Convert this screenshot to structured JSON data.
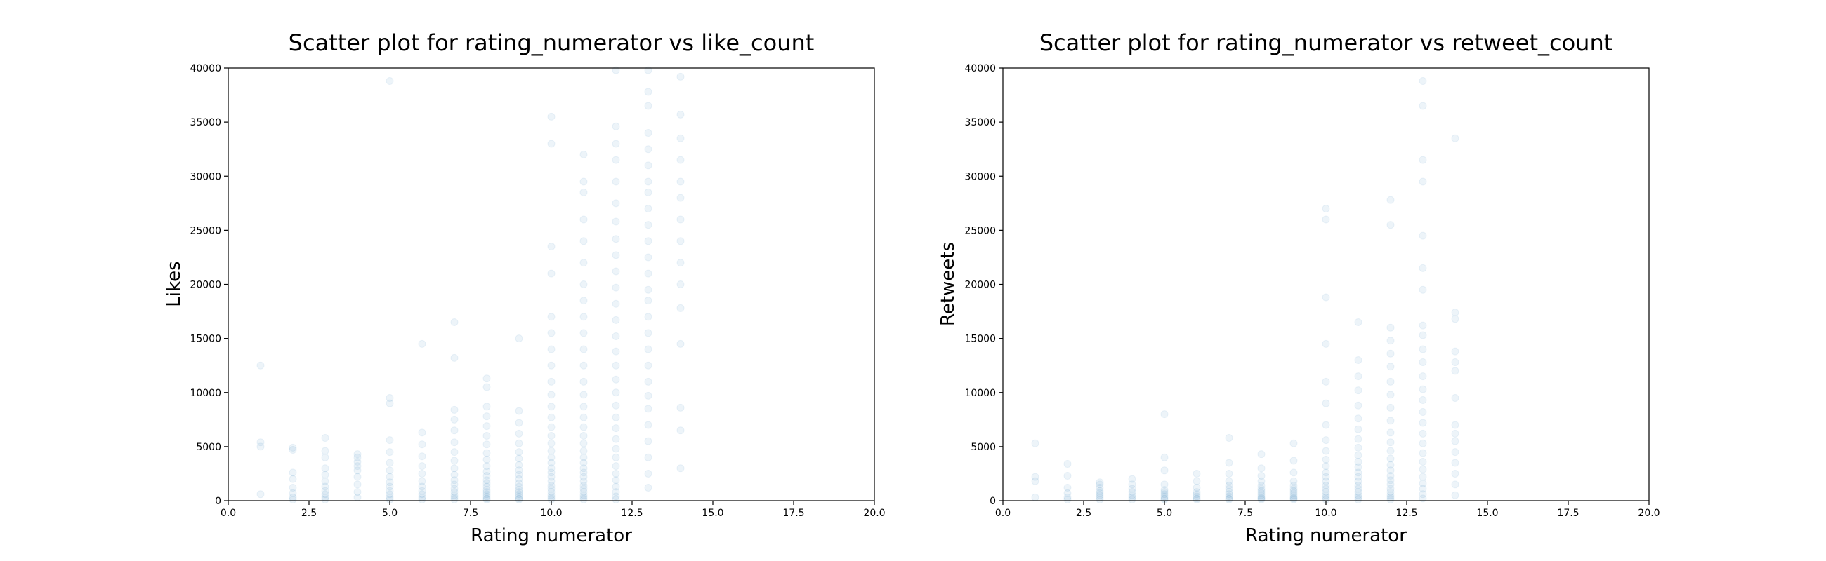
{
  "chart_data": [
    {
      "type": "scatter",
      "title": "Scatter plot for rating_numerator vs like_count",
      "xlabel": "Rating numerator",
      "ylabel": "Likes",
      "xlim": [
        0,
        20
      ],
      "ylim": [
        0,
        40000
      ],
      "xticks": [
        "0.0",
        "2.5",
        "5.0",
        "7.5",
        "10.0",
        "12.5",
        "15.0",
        "17.5",
        "20.0"
      ],
      "yticks": [
        "0",
        "5000",
        "10000",
        "15000",
        "20000",
        "25000",
        "30000",
        "35000",
        "40000"
      ],
      "grid": false,
      "point_color": "#1f77b4",
      "point_alpha": 0.08,
      "series": [
        {
          "points": [
            {
              "x": 1,
              "y": [
                600,
                5000,
                5400,
                12500
              ]
            },
            {
              "x": 2,
              "y": [
                100,
                300,
                700,
                1200,
                2000,
                2600,
                4700,
                4900
              ]
            },
            {
              "x": 3,
              "y": [
                100,
                300,
                600,
                900,
                1300,
                1800,
                2400,
                3000,
                4000,
                4600,
                5800
              ]
            },
            {
              "x": 4,
              "y": [
                300,
                800,
                1500,
                2200,
                2800,
                3200,
                3600,
                4000,
                4300
              ]
            },
            {
              "x": 5,
              "y": [
                100,
                300,
                600,
                900,
                1300,
                1700,
                2200,
                2800,
                3500,
                4500,
                5600,
                9000,
                9500,
                38800
              ]
            },
            {
              "x": 6,
              "y": [
                100,
                300,
                600,
                900,
                1300,
                1800,
                2500,
                3200,
                4100,
                5200,
                6300,
                14500
              ]
            },
            {
              "x": 7,
              "y": [
                100,
                300,
                500,
                800,
                1100,
                1500,
                1900,
                2400,
                3000,
                3700,
                4500,
                5400,
                6500,
                7500,
                8400,
                13200,
                16500
              ]
            },
            {
              "x": 8,
              "y": [
                100,
                200,
                400,
                600,
                800,
                1000,
                1300,
                1600,
                1900,
                2300,
                2700,
                3200,
                3800,
                4400,
                5200,
                6000,
                6900,
                7800,
                8700,
                10500,
                11300
              ]
            },
            {
              "x": 9,
              "y": [
                100,
                200,
                400,
                600,
                800,
                1000,
                1300,
                1600,
                2000,
                2400,
                2800,
                3300,
                3900,
                4500,
                5300,
                6200,
                7200,
                8300,
                15000
              ]
            },
            {
              "x": 10,
              "y": [
                100,
                300,
                500,
                800,
                1100,
                1400,
                1800,
                2200,
                2600,
                3000,
                3500,
                4000,
                4600,
                5300,
                6000,
                6800,
                7700,
                8700,
                9800,
                11000,
                12500,
                14000,
                15500,
                17000,
                21000,
                23500,
                33000,
                35500
              ]
            },
            {
              "x": 11,
              "y": [
                100,
                300,
                500,
                800,
                1100,
                1400,
                1800,
                2200,
                2600,
                3000,
                3500,
                4000,
                4600,
                5300,
                6000,
                6800,
                7700,
                8700,
                9800,
                11000,
                12500,
                14000,
                15500,
                17000,
                18500,
                20000,
                22000,
                24000,
                26000,
                28500,
                29500,
                32000
              ]
            },
            {
              "x": 12,
              "y": [
                100,
                400,
                800,
                1300,
                1900,
                2500,
                3200,
                4000,
                4800,
                5700,
                6700,
                7700,
                8800,
                10000,
                11200,
                12500,
                13800,
                15200,
                16700,
                18200,
                19700,
                21200,
                22700,
                24200,
                25800,
                27500,
                29500,
                31500,
                33000,
                34600,
                39800
              ]
            },
            {
              "x": 13,
              "y": [
                1200,
                2500,
                4000,
                5500,
                7000,
                8500,
                9700,
                11000,
                12500,
                14000,
                15500,
                17000,
                18500,
                19500,
                21000,
                22500,
                24000,
                25500,
                27000,
                28500,
                29500,
                31000,
                32500,
                34000,
                36500,
                37800,
                39800
              ]
            },
            {
              "x": 14,
              "y": [
                3000,
                6500,
                8600,
                14500,
                17800,
                20000,
                22000,
                24000,
                26000,
                28000,
                29500,
                31500,
                33500,
                35700,
                39200
              ]
            }
          ]
        }
      ]
    },
    {
      "type": "scatter",
      "title": "Scatter plot for rating_numerator vs retweet_count",
      "xlabel": "Rating numerator",
      "ylabel": "Retweets",
      "xlim": [
        0,
        20
      ],
      "ylim": [
        0,
        40000
      ],
      "xticks": [
        "0.0",
        "2.5",
        "5.0",
        "7.5",
        "10.0",
        "12.5",
        "15.0",
        "17.5",
        "20.0"
      ],
      "yticks": [
        "0",
        "5000",
        "10000",
        "15000",
        "20000",
        "25000",
        "30000",
        "35000",
        "40000"
      ],
      "grid": false,
      "point_color": "#1f77b4",
      "point_alpha": 0.08,
      "series": [
        {
          "points": [
            {
              "x": 1,
              "y": [
                300,
                1800,
                2200,
                5300
              ]
            },
            {
              "x": 2,
              "y": [
                100,
                300,
                700,
                1200,
                2300,
                3400
              ]
            },
            {
              "x": 3,
              "y": [
                100,
                300,
                500,
                700,
                900,
                1200,
                1500,
                1700
              ]
            },
            {
              "x": 4,
              "y": [
                100,
                300,
                500,
                800,
                1100,
                1500,
                2000
              ]
            },
            {
              "x": 5,
              "y": [
                100,
                200,
                400,
                600,
                800,
                1000,
                1500,
                2800,
                4000,
                8000
              ]
            },
            {
              "x": 6,
              "y": [
                100,
                200,
                400,
                600,
                800,
                1200,
                1800,
                2500
              ]
            },
            {
              "x": 7,
              "y": [
                100,
                200,
                400,
                600,
                800,
                1100,
                1400,
                1800,
                2500,
                3500,
                5800
              ]
            },
            {
              "x": 8,
              "y": [
                100,
                200,
                300,
                500,
                700,
                900,
                1100,
                1400,
                1800,
                2300,
                3000,
                4300
              ]
            },
            {
              "x": 9,
              "y": [
                100,
                200,
                300,
                500,
                700,
                900,
                1100,
                1400,
                1800,
                2600,
                3700,
                5300
              ]
            },
            {
              "x": 10,
              "y": [
                100,
                300,
                500,
                800,
                1100,
                1400,
                1800,
                2200,
                2600,
                3200,
                3800,
                4600,
                5600,
                7000,
                9000,
                11000,
                14500,
                18800,
                26000,
                27000
              ]
            },
            {
              "x": 11,
              "y": [
                100,
                300,
                500,
                800,
                1100,
                1400,
                1800,
                2200,
                2600,
                3100,
                3600,
                4200,
                4900,
                5700,
                6600,
                7600,
                8800,
                10200,
                11500,
                13000,
                16500
              ]
            },
            {
              "x": 12,
              "y": [
                100,
                300,
                500,
                800,
                1100,
                1500,
                1900,
                2300,
                2800,
                3300,
                3900,
                4600,
                5400,
                6300,
                7400,
                8600,
                9800,
                11000,
                12400,
                13600,
                14800,
                16000,
                25500,
                27800
              ]
            },
            {
              "x": 13,
              "y": [
                200,
                600,
                1100,
                1600,
                2200,
                2900,
                3600,
                4400,
                5300,
                6200,
                7200,
                8200,
                9300,
                10300,
                11500,
                12800,
                14000,
                15300,
                16200,
                19500,
                21500,
                24500,
                29500,
                31500,
                36500,
                38800
              ]
            },
            {
              "x": 14,
              "y": [
                500,
                1500,
                2500,
                3500,
                4500,
                5500,
                6200,
                7000,
                9500,
                12000,
                12800,
                13800,
                16800,
                17400,
                33500
              ]
            }
          ]
        }
      ]
    }
  ]
}
